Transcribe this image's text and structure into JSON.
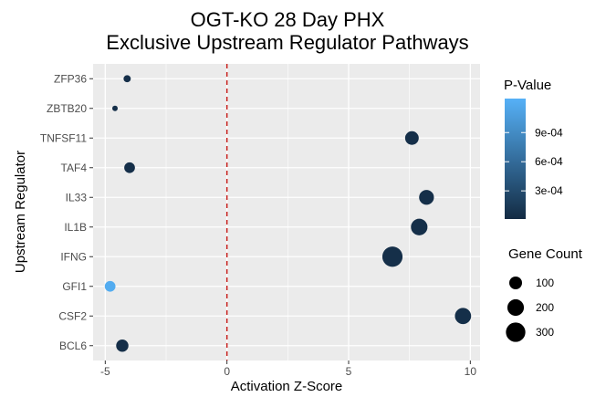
{
  "chart_data": {
    "type": "scatter",
    "title": [
      "OGT-KO 28 Day PHX",
      "Exclusive Upstream Regulator Pathways"
    ],
    "xlabel": "Activation Z-Score",
    "ylabel": "Upstream Regulator",
    "xlim": [
      -5.5,
      10.4
    ],
    "xticks": [
      -5,
      0,
      5,
      10
    ],
    "vline": {
      "x": 0,
      "color": "#c8211e",
      "style": "dashed"
    },
    "grid": true,
    "categories": [
      "ZFP36",
      "ZBTB20",
      "TNFSF11",
      "TAF4",
      "IL33",
      "IL1B",
      "IFNG",
      "GFI1",
      "CSF2",
      "BCL6"
    ],
    "points": [
      {
        "regulator": "ZFP36",
        "z": -4.1,
        "p_value": 5e-05,
        "gene_count": 15
      },
      {
        "regulator": "ZBTB20",
        "z": -4.6,
        "p_value": 5e-05,
        "gene_count": 4
      },
      {
        "regulator": "TNFSF11",
        "z": 7.6,
        "p_value": 5e-05,
        "gene_count": 120
      },
      {
        "regulator": "TAF4",
        "z": -4.0,
        "p_value": 5e-05,
        "gene_count": 60
      },
      {
        "regulator": "IL33",
        "z": 8.2,
        "p_value": 5e-05,
        "gene_count": 150
      },
      {
        "regulator": "IL1B",
        "z": 7.9,
        "p_value": 5e-05,
        "gene_count": 200
      },
      {
        "regulator": "IFNG",
        "z": 6.8,
        "p_value": 5e-05,
        "gene_count": 330
      },
      {
        "regulator": "GFI1",
        "z": -4.8,
        "p_value": 0.0012,
        "gene_count": 60
      },
      {
        "regulator": "CSF2",
        "z": 9.7,
        "p_value": 5e-05,
        "gene_count": 190
      },
      {
        "regulator": "BCL6",
        "z": -4.3,
        "p_value": 5e-05,
        "gene_count": 90
      }
    ],
    "color_legend": {
      "title": "P-Value",
      "labels": [
        "9e-04",
        "6e-04",
        "3e-04"
      ],
      "values": [
        0.0009,
        0.0006,
        0.0003
      ],
      "range": [
        1e-05,
        0.00125
      ],
      "low_color": "#132b43",
      "high_color": "#56b1f7",
      "placement": "right"
    },
    "size_legend": {
      "title": "Gene Count",
      "labels": [
        "100",
        "200",
        "300"
      ],
      "values": [
        100,
        200,
        300
      ],
      "placement": "right"
    },
    "panel_color": "#ebebeb",
    "grid_color": "#ffffff"
  }
}
